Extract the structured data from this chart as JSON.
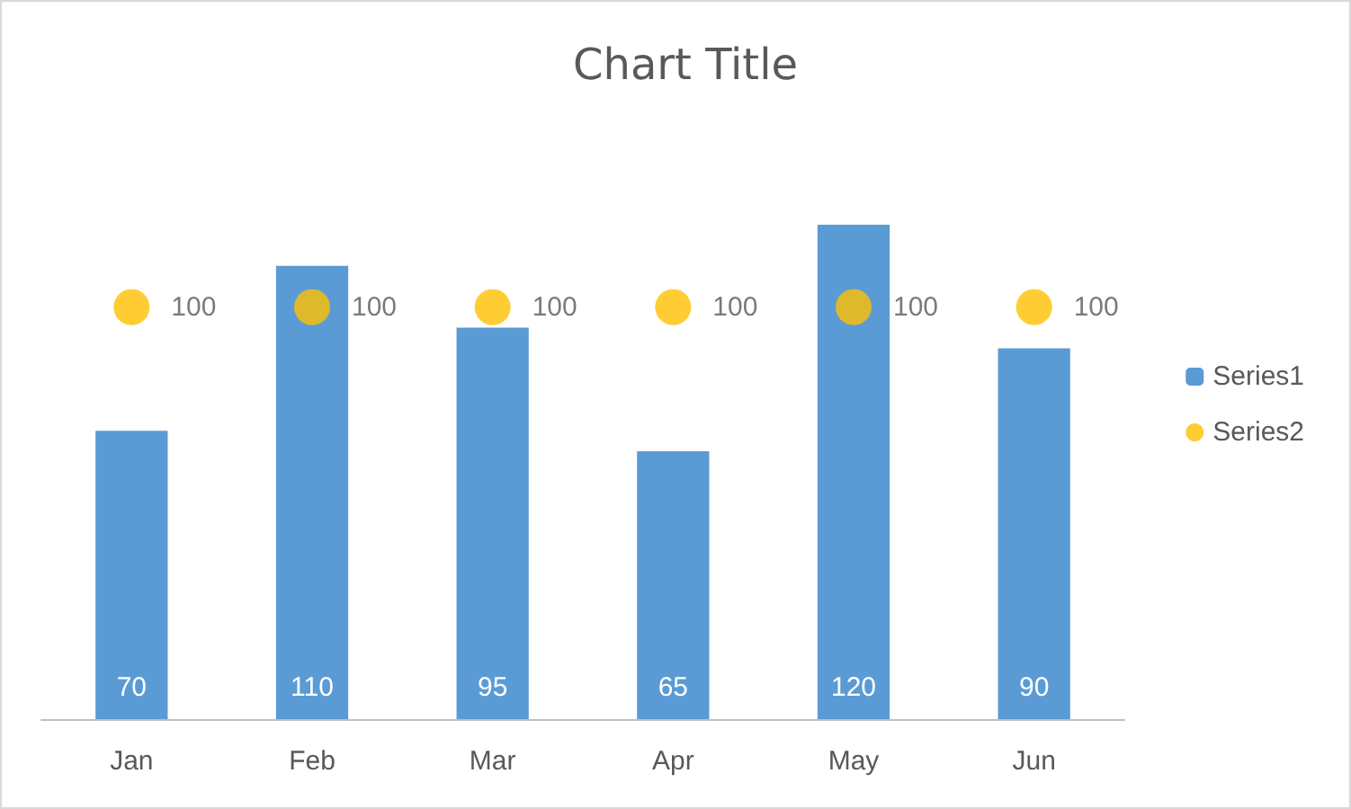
{
  "chart_data": {
    "type": "bar",
    "title": "Chart Title",
    "categories": [
      "Jan",
      "Feb",
      "Mar",
      "Apr",
      "May",
      "Jun"
    ],
    "series": [
      {
        "name": "Series1",
        "color": "#5b9bd5",
        "values": [
          70,
          110,
          95,
          65,
          120,
          90
        ]
      },
      {
        "name": "Series2",
        "type": "scatter",
        "color": "#ffc000",
        "values": [
          100,
          100,
          100,
          100,
          100,
          100
        ]
      }
    ],
    "data_labels": true,
    "marker": "circle",
    "grid": false,
    "legend": "right"
  }
}
